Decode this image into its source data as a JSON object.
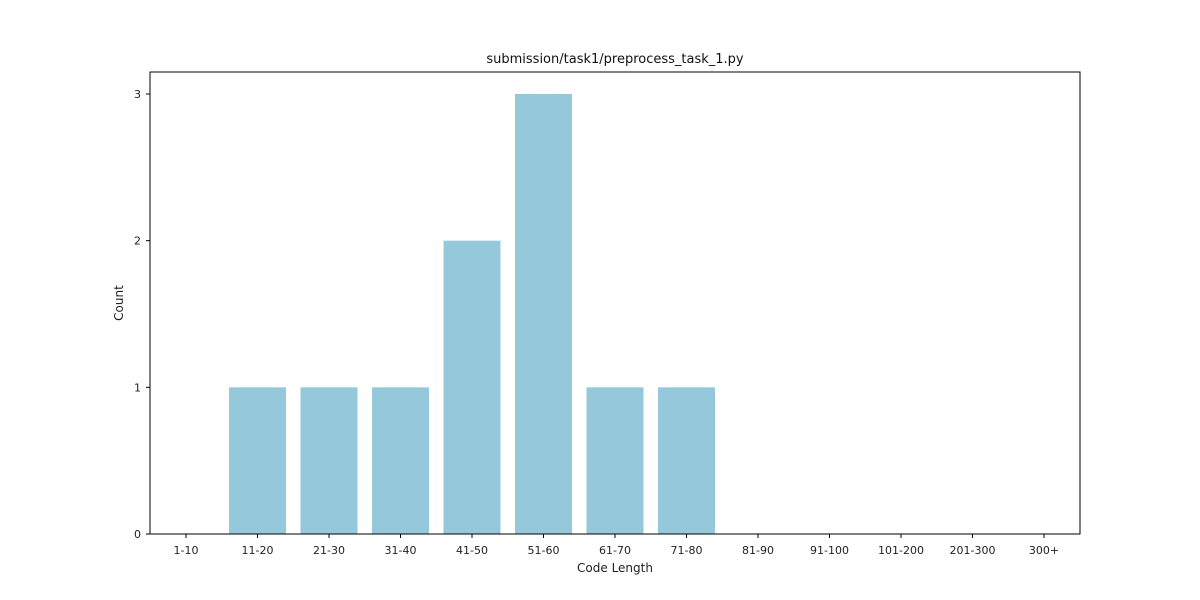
{
  "chart_data": {
    "type": "bar",
    "title": "submission/task1/preprocess_task_1.py",
    "xlabel": "Code Length",
    "ylabel": "Count",
    "categories": [
      "1-10",
      "11-20",
      "21-30",
      "31-40",
      "41-50",
      "51-60",
      "61-70",
      "71-80",
      "81-90",
      "91-100",
      "101-200",
      "201-300",
      "300+"
    ],
    "values": [
      0,
      1,
      1,
      1,
      2,
      3,
      1,
      1,
      0,
      0,
      0,
      0,
      0
    ],
    "ylim": [
      0,
      3.15
    ],
    "yticks": [
      0,
      1,
      2,
      3
    ],
    "bar_color": "#96c8dc",
    "grid": false,
    "legend": "none"
  }
}
